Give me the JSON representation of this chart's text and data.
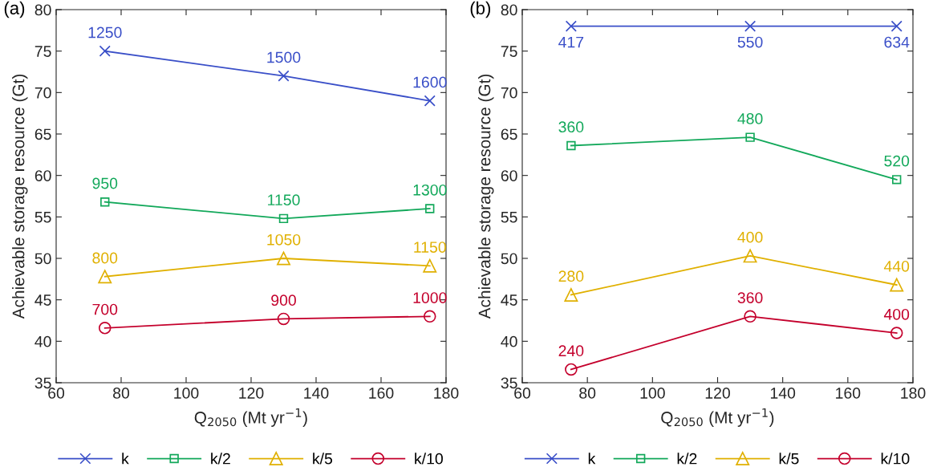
{
  "chart_data": [
    {
      "type": "line",
      "xlabel": "Q$_{2050}$ (Mt yr$^{−1}$)",
      "ylabel": "Achievable storage resource (Gt)",
      "x": [
        75,
        130,
        175
      ],
      "xlim": [
        60,
        180
      ],
      "xticks": [
        60,
        80,
        100,
        120,
        140,
        160,
        180
      ],
      "ylim": [
        35,
        80
      ],
      "yticks": [
        35,
        40,
        45,
        50,
        55,
        60,
        65,
        70,
        75,
        80
      ],
      "grid": false,
      "legend": "bottom",
      "line_style": "solid",
      "series": [
        {
          "name": "k",
          "color": "#3a4fc8",
          "marker": "cross",
          "values": [
            75,
            72,
            69
          ]
        },
        {
          "name": "k/2",
          "color": "#12a85a",
          "marker": "square",
          "values": [
            56.8,
            54.8,
            56.0
          ]
        },
        {
          "name": "k/5",
          "color": "#e0b000",
          "marker": "triangle",
          "values": [
            47.8,
            50.0,
            49.1
          ]
        },
        {
          "name": "k/10",
          "color": "#c4002c",
          "marker": "circle",
          "values": [
            41.6,
            42.7,
            43.0
          ]
        }
      ],
      "annotations": [
        "(a)",
        {
          "text": "1250",
          "x": 75,
          "y": 75
        },
        {
          "text": "1500",
          "x": 130,
          "y": 72
        },
        {
          "text": "1600",
          "x": 175,
          "y": 69
        },
        {
          "text": "950",
          "x": 75,
          "y": 56.8
        },
        {
          "text": "1150",
          "x": 130,
          "y": 54.8
        },
        {
          "text": "1300",
          "x": 175,
          "y": 56.0
        },
        {
          "text": "800",
          "x": 75,
          "y": 47.8
        },
        {
          "text": "1050",
          "x": 130,
          "y": 50.0
        },
        {
          "text": "1150",
          "x": 175,
          "y": 49.1
        },
        {
          "text": "700",
          "x": 75,
          "y": 41.6
        },
        {
          "text": "900",
          "x": 130,
          "y": 42.7
        },
        {
          "text": "1000",
          "x": 175,
          "y": 43.0
        }
      ]
    },
    {
      "type": "line",
      "xlabel": "Q$_{2050}$ (Mt yr$^{−1}$)",
      "ylabel": "Achievable storage resource (Gt)",
      "x": [
        75,
        130,
        175
      ],
      "xlim": [
        60,
        180
      ],
      "xticks": [
        60,
        80,
        100,
        120,
        140,
        160,
        180
      ],
      "ylim": [
        35,
        80
      ],
      "yticks": [
        35,
        40,
        45,
        50,
        55,
        60,
        65,
        70,
        75,
        80
      ],
      "grid": false,
      "legend": "bottom",
      "line_style": "solid",
      "series": [
        {
          "name": "k",
          "color": "#3a4fc8",
          "marker": "cross",
          "values": [
            78,
            78,
            78
          ]
        },
        {
          "name": "k/2",
          "color": "#12a85a",
          "marker": "square",
          "values": [
            63.6,
            64.6,
            59.5
          ]
        },
        {
          "name": "k/5",
          "color": "#e0b000",
          "marker": "triangle",
          "values": [
            45.6,
            50.3,
            46.8
          ]
        },
        {
          "name": "k/10",
          "color": "#c4002c",
          "marker": "circle",
          "values": [
            36.6,
            43.0,
            41.0
          ]
        }
      ],
      "annotations": [
        "(b)",
        {
          "text": "417",
          "x": 75,
          "y": 78
        },
        {
          "text": "550",
          "x": 130,
          "y": 78
        },
        {
          "text": "634",
          "x": 175,
          "y": 78
        },
        {
          "text": "360",
          "x": 75,
          "y": 63.6
        },
        {
          "text": "480",
          "x": 130,
          "y": 64.6
        },
        {
          "text": "520",
          "x": 175,
          "y": 59.5
        },
        {
          "text": "280",
          "x": 75,
          "y": 45.6
        },
        {
          "text": "400",
          "x": 130,
          "y": 50.3
        },
        {
          "text": "440",
          "x": 175,
          "y": 46.8
        },
        {
          "text": "240",
          "x": 75,
          "y": 36.6
        },
        {
          "text": "360",
          "x": 130,
          "y": 43.0
        },
        {
          "text": "400",
          "x": 175,
          "y": 41.0
        }
      ]
    }
  ]
}
